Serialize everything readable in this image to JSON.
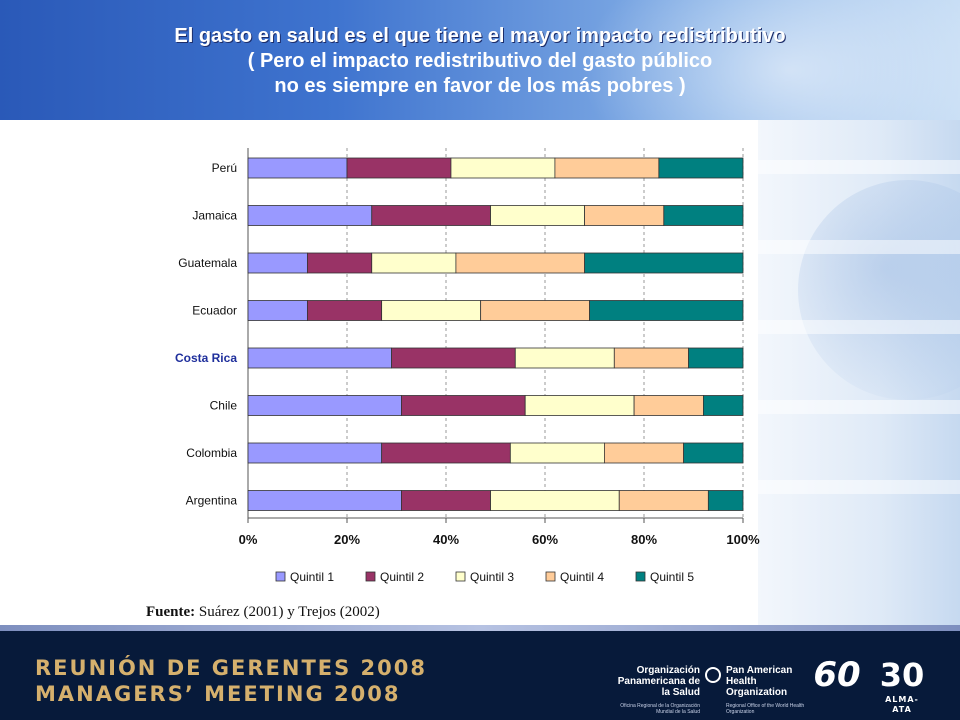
{
  "title": {
    "line1": "El gasto en salud es el que tiene el mayor impacto redistributivo",
    "line2": "( Pero el impacto redistributivo del gasto público",
    "line3": "no es siempre en favor de los más pobres )"
  },
  "chart_data": {
    "type": "bar",
    "orientation": "horizontal",
    "stacked": "percent",
    "categories": [
      "Perú",
      "Jamaica",
      "Guatemala",
      "Ecuador",
      "Costa Rica",
      "Chile",
      "Colombia",
      "Argentina"
    ],
    "highlighted_category": "Costa Rica",
    "series": [
      {
        "name": "Quintil 1",
        "color": "#9999ff",
        "values": [
          20,
          25,
          12,
          12,
          29,
          31,
          27,
          31
        ]
      },
      {
        "name": "Quintil 2",
        "color": "#993366",
        "values": [
          21,
          24,
          13,
          15,
          25,
          25,
          26,
          18
        ]
      },
      {
        "name": "Quintil 3",
        "color": "#ffffcc",
        "values": [
          21,
          19,
          17,
          20,
          20,
          22,
          19,
          26
        ]
      },
      {
        "name": "Quintil 4",
        "color": "#ffcc99",
        "values": [
          21,
          16,
          26,
          22,
          15,
          14,
          16,
          18
        ]
      },
      {
        "name": "Quintil 5",
        "color": "#008080",
        "values": [
          17,
          16,
          32,
          31,
          11,
          8,
          12,
          7
        ]
      }
    ],
    "x_ticks": [
      "0%",
      "20%",
      "40%",
      "60%",
      "80%",
      "100%"
    ],
    "xlim": [
      0,
      100
    ],
    "grid": "vertical dashed",
    "legend_position": "bottom"
  },
  "source": {
    "label": "Fuente:",
    "text": "Suárez (2001) y Trejos (2002)"
  },
  "footer": {
    "event_es": "REUNIÓN DE GERENTES 2008",
    "event_en": "MANAGERS’ MEETING 2008",
    "org_es": "Organización Panamericana de la Salud",
    "org_en": "Pan American Health Organization",
    "org_es_small": "Oficina Regional de la Organización Mundial de la Salud",
    "org_en_small": "Regional Office of the World Health Organization",
    "badge_60": "60",
    "badge_30": "30",
    "badge_30_sub": "ALMA-ATA"
  },
  "colors": {
    "highlight_label": "#1f2f9c",
    "event_text": "#d5b06d",
    "footer_bg": "#071a3a"
  }
}
